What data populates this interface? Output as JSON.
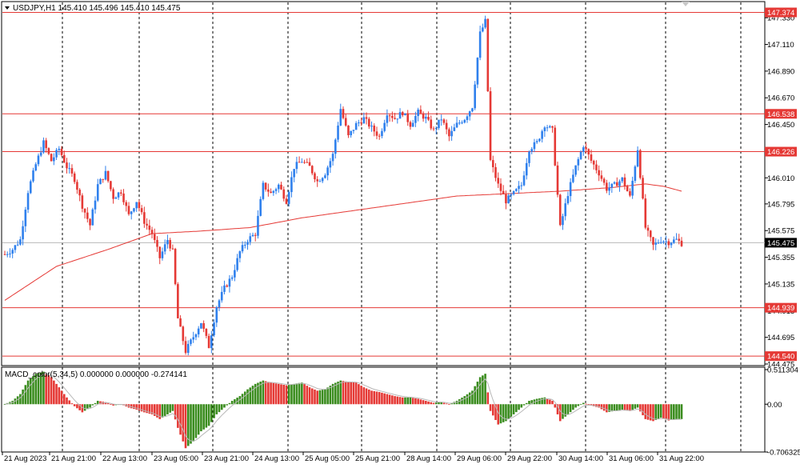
{
  "header": {
    "symbol_line": "USDJPY,H1  145.410 145.496 145.410 145.475",
    "indicator_line": "MACD_color(5,34,5) 0.000000 0.000000 -0.274141"
  },
  "colors": {
    "bull": "#2f80ed",
    "bear": "#e53935",
    "ma": "#e53935",
    "level": "#e53935",
    "macd_pos": "#3a8c1e",
    "macd_neg": "#e53935",
    "signal": "#b8b8b8",
    "grid": "#000000",
    "current": "#b8b8b8"
  },
  "chart_data": {
    "type": "candlestick",
    "symbol": "USDJPY",
    "timeframe": "H1",
    "ylim": [
      144.475,
      147.45
    ],
    "y_ticks": [
      "147.330",
      "147.110",
      "146.890",
      "146.670",
      "146.450",
      "146.010",
      "145.795",
      "145.575",
      "145.355",
      "145.135",
      "144.915",
      "144.695",
      "144.475"
    ],
    "x_ticks": [
      "21 Aug 2023",
      "21 Aug 21:00",
      "22 Aug 13:00",
      "23 Aug 05:00",
      "23 Aug 21:00",
      "24 Aug 13:00",
      "25 Aug 05:00",
      "25 Aug 21:00",
      "28 Aug 14:00",
      "29 Aug 06:00",
      "29 Aug 22:00",
      "30 Aug 14:00",
      "31 Aug 06:00",
      "31 Aug 22:00"
    ],
    "levels": [
      {
        "label": "147.374",
        "value": 147.374
      },
      {
        "label": "146.538",
        "value": 146.538
      },
      {
        "label": "146.226",
        "value": 146.226
      },
      {
        "label": "144.939",
        "value": 144.939
      },
      {
        "label": "144.540",
        "value": 144.54
      }
    ],
    "current_price": {
      "label": "145.475",
      "value": 145.475
    },
    "price_anchors": [
      [
        0,
        145.38
      ],
      [
        3,
        145.42
      ],
      [
        6,
        145.5
      ],
      [
        9,
        145.9
      ],
      [
        12,
        146.12
      ],
      [
        15,
        146.3
      ],
      [
        18,
        146.15
      ],
      [
        21,
        146.25
      ],
      [
        24,
        146.1
      ],
      [
        27,
        146.0
      ],
      [
        30,
        145.78
      ],
      [
        33,
        145.62
      ],
      [
        36,
        145.95
      ],
      [
        39,
        146.05
      ],
      [
        42,
        145.85
      ],
      [
        45,
        145.9
      ],
      [
        48,
        145.7
      ],
      [
        51,
        145.82
      ],
      [
        54,
        145.65
      ],
      [
        57,
        145.55
      ],
      [
        60,
        145.35
      ],
      [
        63,
        145.5
      ],
      [
        65,
        145.4
      ],
      [
        67,
        144.85
      ],
      [
        70,
        144.58
      ],
      [
        73,
        144.7
      ],
      [
        76,
        144.82
      ],
      [
        79,
        144.62
      ],
      [
        82,
        144.95
      ],
      [
        85,
        145.1
      ],
      [
        88,
        145.2
      ],
      [
        91,
        145.4
      ],
      [
        94,
        145.5
      ],
      [
        97,
        145.55
      ],
      [
        100,
        145.95
      ],
      [
        103,
        145.88
      ],
      [
        106,
        145.95
      ],
      [
        109,
        145.82
      ],
      [
        112,
        146.1
      ],
      [
        115,
        146.15
      ],
      [
        118,
        146.1
      ],
      [
        121,
        145.98
      ],
      [
        124,
        146.05
      ],
      [
        127,
        146.2
      ],
      [
        130,
        146.58
      ],
      [
        133,
        146.35
      ],
      [
        136,
        146.45
      ],
      [
        139,
        146.5
      ],
      [
        142,
        146.42
      ],
      [
        145,
        146.35
      ],
      [
        148,
        146.55
      ],
      [
        151,
        146.5
      ],
      [
        154,
        146.55
      ],
      [
        157,
        146.45
      ],
      [
        160,
        146.55
      ],
      [
        163,
        146.5
      ],
      [
        166,
        146.4
      ],
      [
        169,
        146.5
      ],
      [
        172,
        146.35
      ],
      [
        175,
        146.45
      ],
      [
        178,
        146.5
      ],
      [
        181,
        146.6
      ],
      [
        184,
        147.2
      ],
      [
        186,
        147.3
      ],
      [
        188,
        146.15
      ],
      [
        191,
        145.95
      ],
      [
        194,
        145.82
      ],
      [
        197,
        145.88
      ],
      [
        200,
        145.95
      ],
      [
        203,
        146.25
      ],
      [
        206,
        146.3
      ],
      [
        209,
        146.45
      ],
      [
        212,
        146.4
      ],
      [
        215,
        145.6
      ],
      [
        218,
        145.88
      ],
      [
        221,
        146.1
      ],
      [
        224,
        146.28
      ],
      [
        227,
        146.15
      ],
      [
        230,
        146.05
      ],
      [
        233,
        145.92
      ],
      [
        236,
        145.95
      ],
      [
        239,
        146.0
      ],
      [
        242,
        145.85
      ],
      [
        245,
        146.25
      ],
      [
        248,
        145.6
      ],
      [
        251,
        145.45
      ],
      [
        254,
        145.5
      ],
      [
        257,
        145.48
      ],
      [
        260,
        145.5
      ],
      [
        262,
        145.47
      ]
    ],
    "ma_anchors": [
      [
        0,
        145.0
      ],
      [
        20,
        145.28
      ],
      [
        40,
        145.42
      ],
      [
        57,
        145.55
      ],
      [
        75,
        145.57
      ],
      [
        95,
        145.6
      ],
      [
        115,
        145.68
      ],
      [
        135,
        145.74
      ],
      [
        155,
        145.8
      ],
      [
        175,
        145.86
      ],
      [
        195,
        145.88
      ],
      [
        215,
        145.9
      ],
      [
        235,
        145.93
      ],
      [
        248,
        145.96
      ],
      [
        255,
        145.94
      ],
      [
        262,
        145.9
      ]
    ],
    "macd_ylim": [
      -0.706325,
      0.511304
    ],
    "macd_ticks": [
      "0.511304",
      "0.00",
      "-0.706325"
    ],
    "macd_anchors": [
      [
        0,
        0.0
      ],
      [
        3,
        0.05
      ],
      [
        6,
        0.15
      ],
      [
        9,
        0.35
      ],
      [
        12,
        0.45
      ],
      [
        15,
        0.48
      ],
      [
        18,
        0.4
      ],
      [
        21,
        0.25
      ],
      [
        24,
        0.1
      ],
      [
        27,
        -0.03
      ],
      [
        30,
        -0.12
      ],
      [
        33,
        -0.05
      ],
      [
        36,
        0.05
      ],
      [
        39,
        0.03
      ],
      [
        42,
        -0.02
      ],
      [
        45,
        0.0
      ],
      [
        48,
        -0.05
      ],
      [
        51,
        -0.08
      ],
      [
        54,
        -0.12
      ],
      [
        57,
        -0.15
      ],
      [
        60,
        -0.22
      ],
      [
        63,
        -0.15
      ],
      [
        65,
        -0.1
      ],
      [
        67,
        -0.35
      ],
      [
        70,
        -0.65
      ],
      [
        73,
        -0.55
      ],
      [
        76,
        -0.4
      ],
      [
        79,
        -0.32
      ],
      [
        82,
        -0.15
      ],
      [
        85,
        -0.05
      ],
      [
        88,
        0.05
      ],
      [
        91,
        0.12
      ],
      [
        94,
        0.22
      ],
      [
        97,
        0.3
      ],
      [
        100,
        0.35
      ],
      [
        103,
        0.32
      ],
      [
        106,
        0.3
      ],
      [
        109,
        0.28
      ],
      [
        112,
        0.3
      ],
      [
        115,
        0.32
      ],
      [
        118,
        0.25
      ],
      [
        121,
        0.2
      ],
      [
        124,
        0.22
      ],
      [
        127,
        0.3
      ],
      [
        130,
        0.35
      ],
      [
        133,
        0.33
      ],
      [
        136,
        0.32
      ],
      [
        139,
        0.25
      ],
      [
        142,
        0.2
      ],
      [
        145,
        0.18
      ],
      [
        148,
        0.15
      ],
      [
        151,
        0.12
      ],
      [
        154,
        0.1
      ],
      [
        157,
        0.1
      ],
      [
        160,
        0.08
      ],
      [
        163,
        0.05
      ],
      [
        166,
        0.02
      ],
      [
        169,
        0.03
      ],
      [
        172,
        0.0
      ],
      [
        175,
        0.05
      ],
      [
        178,
        0.12
      ],
      [
        181,
        0.2
      ],
      [
        184,
        0.4
      ],
      [
        186,
        0.45
      ],
      [
        188,
        -0.1
      ],
      [
        191,
        -0.3
      ],
      [
        194,
        -0.25
      ],
      [
        197,
        -0.15
      ],
      [
        200,
        -0.05
      ],
      [
        203,
        0.05
      ],
      [
        206,
        0.08
      ],
      [
        209,
        0.1
      ],
      [
        212,
        0.05
      ],
      [
        215,
        -0.25
      ],
      [
        218,
        -0.15
      ],
      [
        221,
        -0.05
      ],
      [
        224,
        0.02
      ],
      [
        227,
        -0.02
      ],
      [
        230,
        -0.05
      ],
      [
        233,
        -0.12
      ],
      [
        236,
        -0.1
      ],
      [
        239,
        -0.08
      ],
      [
        242,
        -0.1
      ],
      [
        245,
        -0.05
      ],
      [
        248,
        -0.22
      ],
      [
        251,
        -0.25
      ],
      [
        254,
        -0.2
      ],
      [
        257,
        -0.24
      ],
      [
        260,
        -0.22
      ],
      [
        262,
        -0.22
      ]
    ]
  }
}
